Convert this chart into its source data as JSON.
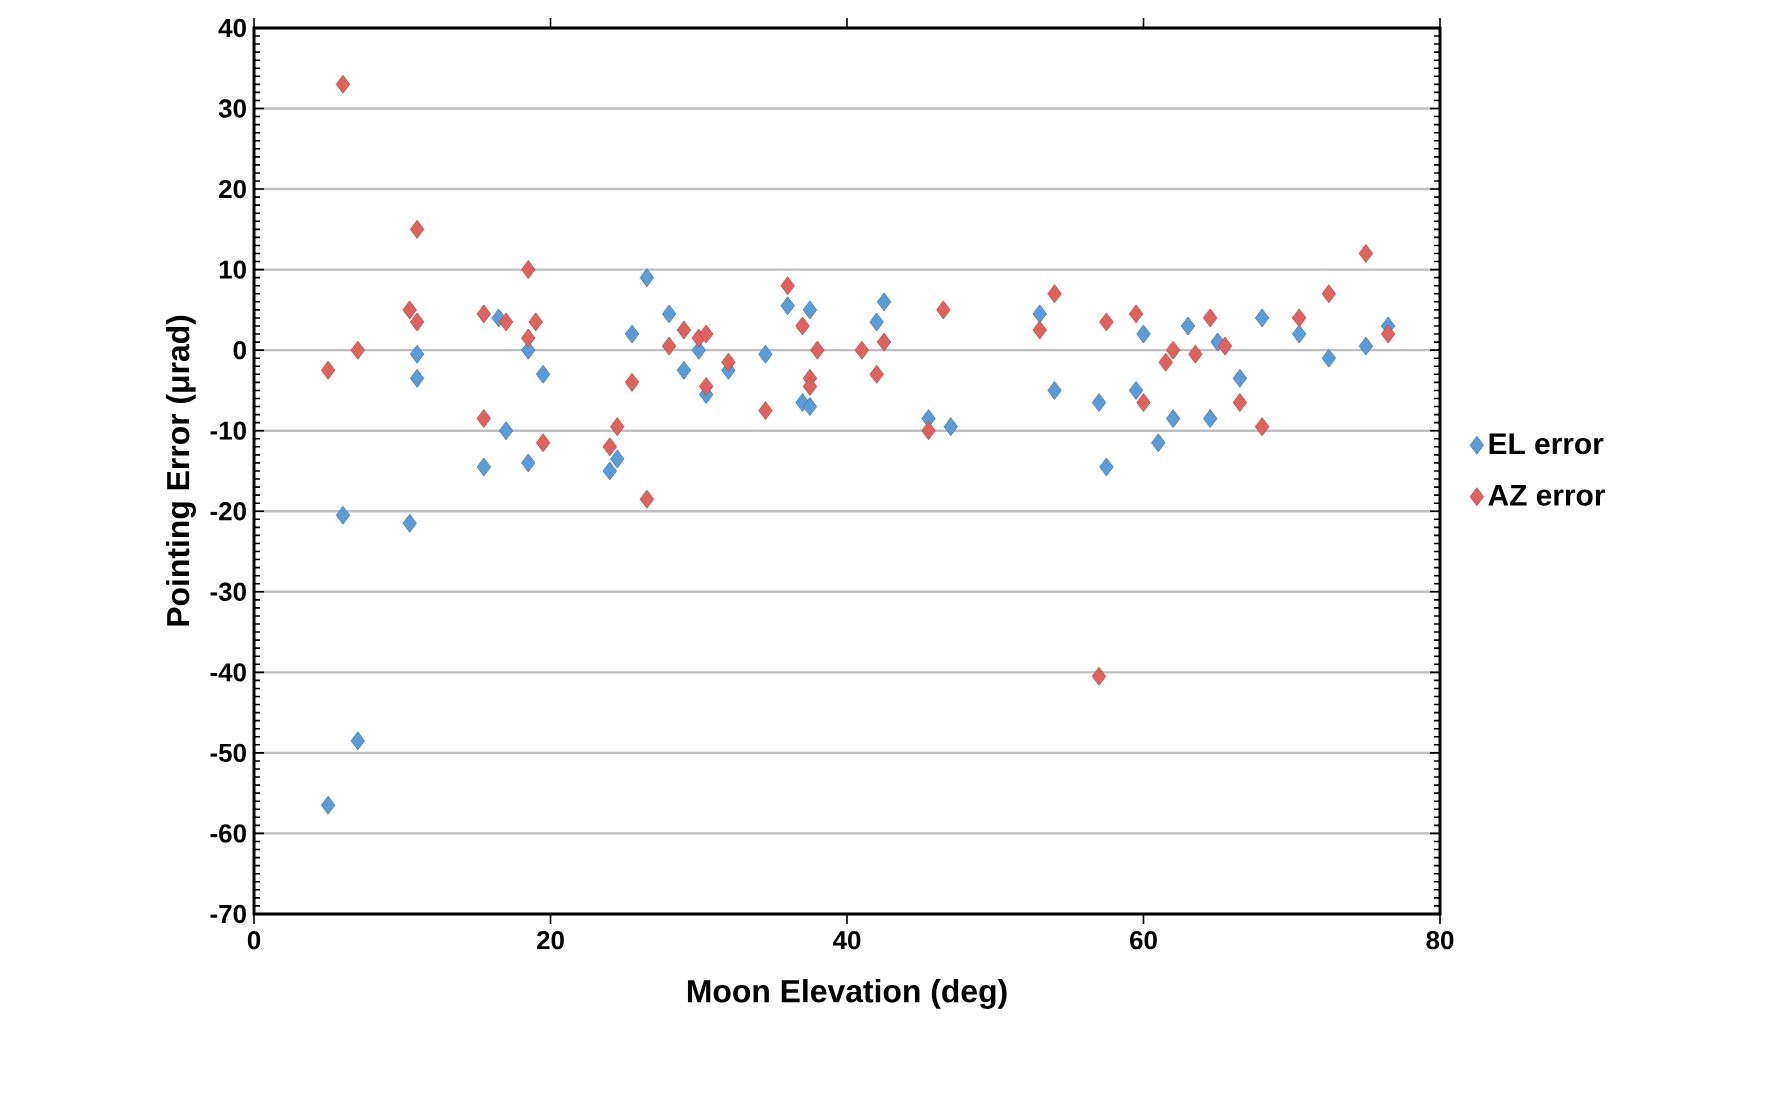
{
  "chart_data": {
    "type": "scatter",
    "xlabel": "Moon Elevation (deg)",
    "ylabel": "Pointing Error (μrad)",
    "xlim": [
      0,
      80
    ],
    "xticks": [
      0,
      20,
      40,
      60,
      80
    ],
    "ylim": [
      -70,
      40
    ],
    "yticks": [
      -70,
      -60,
      -50,
      -40,
      -30,
      -20,
      -10,
      0,
      10,
      20,
      30,
      40
    ],
    "grid": "y",
    "legend": "right",
    "marker": "diamond",
    "series": [
      {
        "name": "EL error",
        "color": "#5b9bd8",
        "x": [
          5,
          6,
          7,
          10.5,
          11,
          11,
          15.5,
          16.5,
          17,
          18.5,
          18.5,
          19.5,
          24,
          24.5,
          25.5,
          26.5,
          28,
          29,
          30,
          30.5,
          32,
          34.5,
          36,
          37,
          37.5,
          37.5,
          42,
          42.5,
          45.5,
          47,
          53,
          54,
          57,
          57.5,
          59.5,
          60,
          61,
          62,
          63,
          64.5,
          65,
          66.5,
          68,
          70.5,
          72.5,
          75,
          76.5
        ],
        "values": [
          -56.5,
          -20.5,
          -48.5,
          -21.5,
          -0.5,
          -3.5,
          -14.5,
          4,
          -10,
          -14,
          0,
          -3,
          -15,
          -13.5,
          2,
          9,
          4.5,
          -2.5,
          0,
          -5.5,
          -2.5,
          -0.5,
          5.5,
          -6.5,
          -7,
          5,
          3.5,
          6,
          -8.5,
          -9.5,
          4.5,
          -5,
          -6.5,
          -14.5,
          -5,
          2,
          -11.5,
          -8.5,
          3,
          -8.5,
          1,
          -3.5,
          4,
          2,
          -1,
          0.5,
          3
        ]
      },
      {
        "name": "AZ error",
        "color": "#e0625f",
        "x": [
          5,
          6,
          7,
          10.5,
          11,
          11,
          15.5,
          15.5,
          17,
          18.5,
          18.5,
          19,
          19.5,
          24,
          24.5,
          25.5,
          26.5,
          28,
          29,
          30,
          30.5,
          30.5,
          32,
          34.5,
          36,
          37,
          37.5,
          37.5,
          38,
          41,
          42,
          42.5,
          46.5,
          45.5,
          53,
          54,
          57,
          57.5,
          59.5,
          60,
          61.5,
          62,
          63.5,
          64.5,
          65.5,
          66.5,
          68,
          70.5,
          72.5,
          75,
          76.5
        ],
        "values": [
          -2.5,
          33,
          0,
          5,
          15,
          3.5,
          -8.5,
          4.5,
          3.5,
          1.5,
          10,
          3.5,
          -11.5,
          -12,
          -9.5,
          -4,
          -18.5,
          0.5,
          2.5,
          1.5,
          -4.5,
          2,
          -1.5,
          -7.5,
          8,
          3,
          -3.5,
          -4.5,
          0,
          0,
          -3,
          1,
          5,
          -10,
          2.5,
          7,
          -40.5,
          3.5,
          4.5,
          -6.5,
          -1.5,
          0,
          -0.5,
          4,
          0.5,
          -6.5,
          -9.5,
          4,
          7,
          12,
          2
        ]
      }
    ]
  }
}
